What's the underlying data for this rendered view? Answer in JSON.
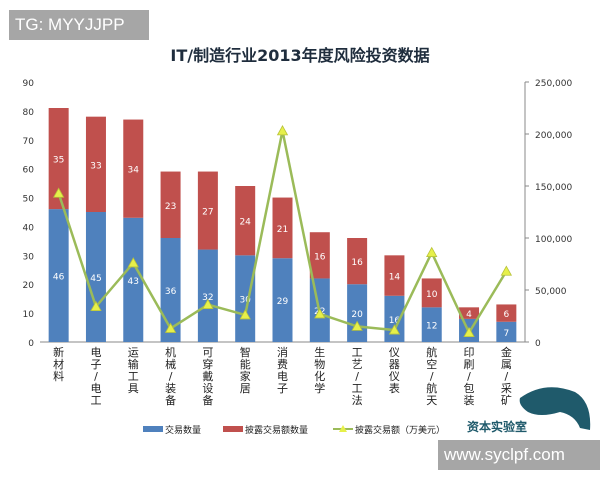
{
  "watermarks": {
    "top_left": "TG: MYYJJPP",
    "bottom_right": "www.syclpf.com",
    "logo": "资本实验室"
  },
  "chart_data": {
    "type": "bar",
    "title": "IT/制造行业2013年度风险投资数据",
    "categories": [
      "新材料",
      "电子/电工",
      "运输工具",
      "机械/装备",
      "可穿戴设备",
      "智能家居",
      "消费电子",
      "生物化学",
      "工艺/工法",
      "仪器仪表",
      "航空/航天",
      "印刷/包装",
      "金属/采矿"
    ],
    "series": [
      {
        "name": "交易数量",
        "kind": "stacked-bar",
        "axis": "left",
        "color": "#4f81bd",
        "values": [
          46,
          45,
          43,
          36,
          32,
          30,
          29,
          22,
          20,
          16,
          12,
          8,
          7
        ]
      },
      {
        "name": "披露交易额数量",
        "kind": "stacked-bar",
        "axis": "left",
        "color": "#c0504d",
        "values": [
          35,
          33,
          34,
          23,
          27,
          24,
          21,
          16,
          16,
          14,
          10,
          4,
          6
        ]
      },
      {
        "name": "披露交易额（万美元）",
        "kind": "line",
        "axis": "right",
        "color": "#9bbb59",
        "marker_color": "#e6f04a",
        "values": [
          143000,
          34000,
          76000,
          13000,
          36000,
          26000,
          203000,
          27000,
          15000,
          11500,
          86000,
          9000,
          68000
        ]
      }
    ],
    "left_axis": {
      "range": [
        0,
        90
      ],
      "ticks": [
        "0",
        "10",
        "20",
        "30",
        "40",
        "50",
        "60",
        "70",
        "80",
        "90"
      ]
    },
    "right_axis": {
      "range": [
        0,
        250000
      ],
      "ticks": [
        "0",
        "50,000",
        "100,000",
        "150,000",
        "200,000",
        "250,000"
      ]
    },
    "grid": false,
    "legend_placement": "bottom"
  }
}
